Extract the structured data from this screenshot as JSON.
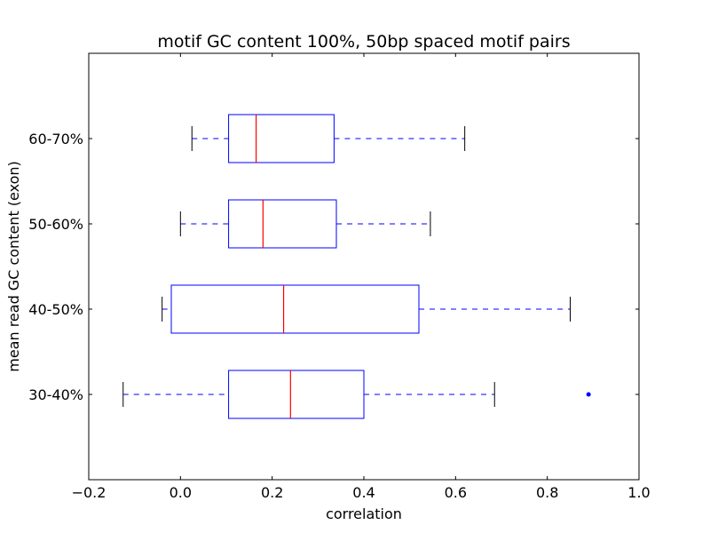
{
  "chart_data": {
    "type": "boxplot",
    "orientation": "horizontal",
    "title": "motif GC content 100%, 50bp spaced motif pairs",
    "xlabel": "correlation",
    "ylabel": "mean read GC content (exon)",
    "xlim": [
      -0.2,
      1.0
    ],
    "xticks": [
      -0.2,
      0.0,
      0.2,
      0.4,
      0.6,
      0.8,
      1.0
    ],
    "xtick_labels": [
      "−0.2",
      "0.0",
      "0.2",
      "0.4",
      "0.6",
      "0.8",
      "1.0"
    ],
    "grid": false,
    "colors": {
      "box": "#0000ff",
      "median": "#ff0000",
      "whisker": "#0000ff",
      "cap": "#000000",
      "outlier": "#0000ff"
    },
    "categories": [
      "30-40%",
      "40-50%",
      "50-60%",
      "60-70%"
    ],
    "boxes": [
      {
        "label": "30-40%",
        "whisker_low": -0.125,
        "q1": 0.105,
        "median": 0.24,
        "q3": 0.4,
        "whisker_high": 0.685,
        "outliers": [
          0.89
        ]
      },
      {
        "label": "40-50%",
        "whisker_low": -0.04,
        "q1": -0.02,
        "median": 0.225,
        "q3": 0.52,
        "whisker_high": 0.85,
        "outliers": []
      },
      {
        "label": "50-60%",
        "whisker_low": 0.0,
        "q1": 0.105,
        "median": 0.18,
        "q3": 0.34,
        "whisker_high": 0.545,
        "outliers": []
      },
      {
        "label": "60-70%",
        "whisker_low": 0.025,
        "q1": 0.105,
        "median": 0.165,
        "q3": 0.335,
        "whisker_high": 0.62,
        "outliers": []
      }
    ]
  }
}
